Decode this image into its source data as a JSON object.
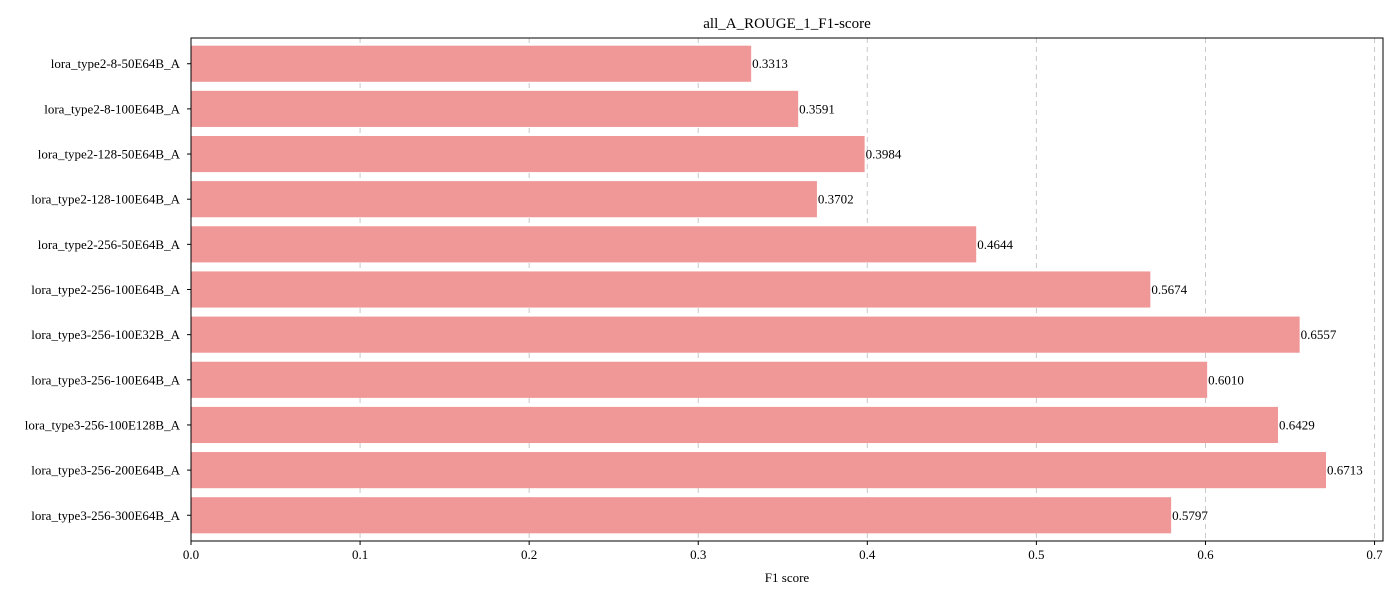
{
  "chart_data": {
    "type": "bar",
    "orientation": "horizontal",
    "title": "all_A_ROUGE_1_F1-score",
    "xlabel": "F1 score",
    "ylabel": "",
    "xlim": [
      0,
      0.705
    ],
    "xticks": [
      "0.0",
      "0.1",
      "0.2",
      "0.3",
      "0.4",
      "0.5",
      "0.6",
      "0.7"
    ],
    "grid": "x-dashed",
    "bar_color": "#f09797",
    "categories": [
      "lora_type2-8-50E64B_A",
      "lora_type2-8-100E64B_A",
      "lora_type2-128-50E64B_A",
      "lora_type2-128-100E64B_A",
      "lora_type2-256-50E64B_A",
      "lora_type2-256-100E64B_A",
      "lora_type3-256-100E32B_A",
      "lora_type3-256-100E64B_A",
      "lora_type3-256-100E128B_A",
      "lora_type3-256-200E64B_A",
      "lora_type3-256-300E64B_A"
    ],
    "values": [
      0.3313,
      0.3591,
      0.3984,
      0.3702,
      0.4644,
      0.5674,
      0.6557,
      0.601,
      0.6429,
      0.6713,
      0.5797
    ],
    "value_labels": [
      "0.3313",
      "0.3591",
      "0.3984",
      "0.3702",
      "0.4644",
      "0.5674",
      "0.6557",
      "0.6010",
      "0.6429",
      "0.6713",
      "0.5797"
    ]
  }
}
